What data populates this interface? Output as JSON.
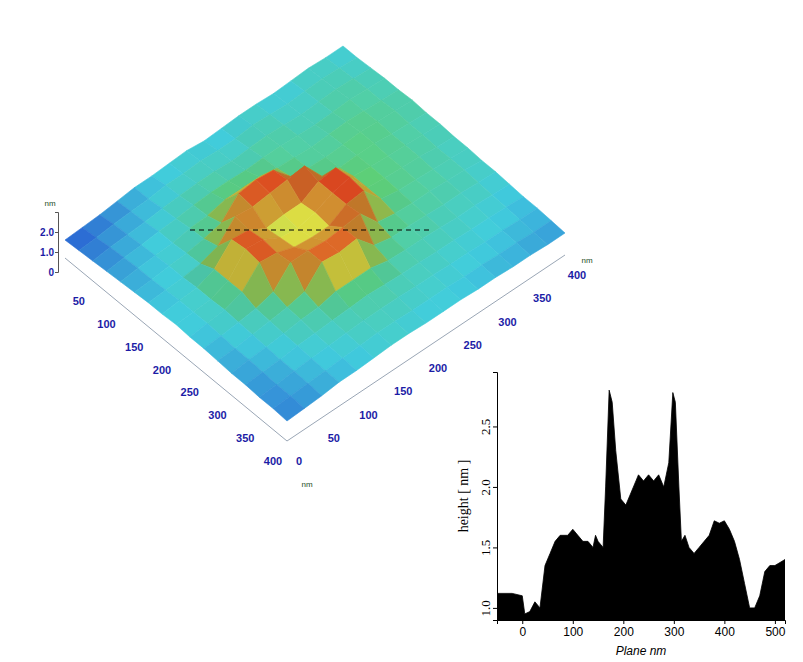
{
  "chart_data": [
    {
      "type": "surface",
      "x": [
        0,
        25,
        50,
        75,
        100,
        125,
        150,
        175,
        200,
        225,
        250,
        275,
        300,
        325,
        350,
        375,
        400
      ],
      "y": [
        0,
        25,
        50,
        75,
        100,
        125,
        150,
        175,
        200,
        225,
        250,
        275,
        300,
        325,
        350,
        375,
        400
      ],
      "z": [
        [
          0.9,
          0.95,
          1.0,
          1.1,
          1.2,
          1.2,
          1.25,
          1.3,
          1.2,
          1.25,
          1.3,
          1.3,
          1.25,
          1.3,
          1.35,
          1.3,
          1.3
        ],
        [
          0.95,
          1.0,
          1.1,
          1.15,
          1.2,
          1.3,
          1.3,
          1.35,
          1.3,
          1.3,
          1.4,
          1.35,
          1.3,
          1.35,
          1.4,
          1.35,
          1.3
        ],
        [
          1.0,
          1.1,
          1.15,
          1.2,
          1.3,
          1.35,
          1.4,
          1.4,
          1.35,
          1.4,
          1.45,
          1.4,
          1.35,
          1.4,
          1.45,
          1.4,
          1.35
        ],
        [
          1.05,
          1.15,
          1.2,
          1.3,
          1.35,
          1.45,
          1.5,
          1.5,
          1.45,
          1.5,
          1.5,
          1.45,
          1.4,
          1.45,
          1.5,
          1.45,
          1.4
        ],
        [
          1.1,
          1.2,
          1.25,
          1.3,
          1.45,
          1.5,
          1.7,
          1.7,
          1.7,
          1.55,
          1.5,
          1.45,
          1.5,
          1.55,
          1.5,
          1.45,
          1.4
        ],
        [
          1.15,
          1.2,
          1.3,
          1.35,
          1.5,
          1.7,
          2.6,
          2.7,
          2.6,
          1.7,
          1.55,
          1.5,
          1.55,
          1.6,
          1.55,
          1.5,
          1.45
        ],
        [
          1.2,
          1.25,
          1.3,
          1.4,
          1.7,
          2.6,
          2.5,
          2.6,
          2.7,
          2.8,
          1.7,
          1.55,
          1.6,
          1.6,
          1.5,
          1.45,
          1.4
        ],
        [
          1.2,
          1.3,
          1.35,
          1.7,
          2.6,
          2.5,
          2.0,
          2.1,
          2.1,
          2.6,
          2.7,
          1.7,
          1.6,
          1.55,
          1.5,
          1.45,
          1.4
        ],
        [
          1.25,
          1.3,
          1.35,
          1.7,
          2.7,
          2.6,
          2.1,
          2.0,
          2.2,
          2.6,
          2.8,
          1.7,
          1.6,
          1.55,
          1.5,
          1.4,
          1.35
        ],
        [
          1.2,
          1.3,
          1.4,
          1.7,
          2.6,
          2.5,
          2.2,
          2.1,
          2.1,
          2.6,
          2.7,
          1.7,
          1.55,
          1.5,
          1.45,
          1.4,
          1.35
        ],
        [
          1.2,
          1.25,
          1.35,
          1.45,
          1.7,
          2.6,
          2.6,
          2.5,
          2.6,
          2.7,
          1.7,
          1.55,
          1.5,
          1.5,
          1.45,
          1.4,
          1.3
        ],
        [
          1.15,
          1.2,
          1.3,
          1.4,
          1.5,
          1.7,
          2.6,
          2.5,
          2.6,
          1.7,
          1.5,
          1.5,
          1.45,
          1.4,
          1.4,
          1.35,
          1.3
        ],
        [
          1.1,
          1.2,
          1.25,
          1.35,
          1.45,
          1.5,
          1.7,
          1.7,
          1.7,
          1.5,
          1.45,
          1.45,
          1.4,
          1.35,
          1.35,
          1.3,
          1.25
        ],
        [
          1.1,
          1.15,
          1.2,
          1.3,
          1.35,
          1.4,
          1.45,
          1.5,
          1.45,
          1.4,
          1.4,
          1.35,
          1.35,
          1.3,
          1.3,
          1.25,
          1.2
        ],
        [
          1.05,
          1.1,
          1.2,
          1.25,
          1.3,
          1.35,
          1.4,
          1.4,
          1.4,
          1.35,
          1.35,
          1.3,
          1.3,
          1.25,
          1.25,
          1.2,
          1.2
        ],
        [
          1.05,
          1.1,
          1.15,
          1.2,
          1.25,
          1.3,
          1.35,
          1.35,
          1.3,
          1.3,
          1.3,
          1.25,
          1.25,
          1.2,
          1.2,
          1.15,
          1.15
        ],
        [
          1.0,
          1.05,
          1.1,
          1.2,
          1.2,
          1.25,
          1.3,
          1.3,
          1.25,
          1.25,
          1.25,
          1.2,
          1.2,
          1.15,
          1.15,
          1.1,
          1.1
        ]
      ],
      "xlim": [
        0,
        400
      ],
      "ylim": [
        0,
        400
      ],
      "zlim": [
        0,
        3.0
      ],
      "xticks": [
        50,
        100,
        150,
        200,
        250,
        300,
        350,
        400
      ],
      "yticks": [
        0,
        50,
        100,
        150,
        200,
        250,
        300,
        350,
        400
      ],
      "zticks": [
        0,
        {
          "value": 1,
          "label": "1.0"
        },
        {
          "value": 2,
          "label": "2.0"
        }
      ],
      "xlabel": "nm",
      "ylabel": "nm",
      "zlabel": "nm"
    },
    {
      "type": "area",
      "x": [
        -50,
        -20,
        0,
        5,
        15,
        25,
        35,
        45,
        55,
        65,
        75,
        90,
        100,
        110,
        120,
        130,
        140,
        145,
        150,
        160,
        165,
        172,
        178,
        185,
        195,
        205,
        215,
        225,
        230,
        240,
        250,
        260,
        270,
        280,
        290,
        298,
        303,
        310,
        315,
        322,
        330,
        340,
        350,
        360,
        370,
        380,
        390,
        400,
        410,
        420,
        430,
        440,
        450,
        460,
        470,
        480,
        490,
        500,
        520
      ],
      "values": [
        1.12,
        1.12,
        1.1,
        0.95,
        0.97,
        1.05,
        1.0,
        1.35,
        1.45,
        1.55,
        1.6,
        1.6,
        1.65,
        1.6,
        1.55,
        1.55,
        1.5,
        1.6,
        1.55,
        1.5,
        2.0,
        2.8,
        2.7,
        2.3,
        1.9,
        1.85,
        1.95,
        2.05,
        2.1,
        2.05,
        2.1,
        2.05,
        2.1,
        2.0,
        2.2,
        2.78,
        2.7,
        2.0,
        1.55,
        1.6,
        1.5,
        1.45,
        1.5,
        1.55,
        1.6,
        1.72,
        1.7,
        1.72,
        1.65,
        1.55,
        1.4,
        1.2,
        1.0,
        1.0,
        1.1,
        1.3,
        1.35,
        1.35,
        1.4
      ],
      "color": "#000000",
      "xlim": [
        -50,
        520
      ],
      "ylim": [
        0.9,
        2.95
      ],
      "xticks": [
        0,
        100,
        200,
        300,
        400,
        500
      ],
      "yticks": [
        {
          "value": 1,
          "label": "1.0"
        },
        1.5,
        {
          "value": 2,
          "label": "2.0"
        },
        2.5
      ],
      "xlabel": "Plane nm",
      "ylabel": "height [ nm ]"
    }
  ]
}
